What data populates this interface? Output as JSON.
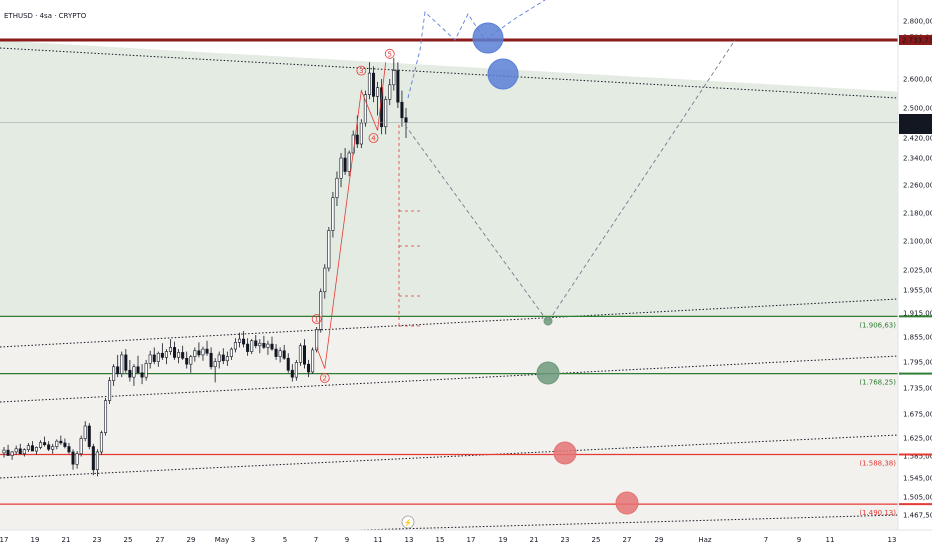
{
  "header": {
    "title": "ETHUSD · 4sa · CRYPTO"
  },
  "colors": {
    "up": "#ffffff",
    "down": "#131722",
    "wick": "#131722",
    "resistance": "#8b1a1a",
    "green_line": "#2e7d32",
    "red_line": "#e53935",
    "channel_fill": "#e3ebe3",
    "lower_fill": "#f2f1ee",
    "blue_circle": "#5b7fd6",
    "green_circle": "#6e9a7d",
    "red_circle": "#e57373"
  },
  "chart_data": {
    "type": "candlestick",
    "symbol": "ETHUSD",
    "timeframe": "4sa",
    "exchange": "CRYPTO",
    "ylim": [
      1440,
      2840
    ],
    "y_ticks": [
      "2.800,00",
      "2.700,00",
      "2.600,00",
      "2.500,00",
      "2.420,00",
      "2.340,00",
      "2.260,00",
      "2.180,00",
      "2.100,00",
      "2.025,00",
      "1.955,00",
      "1.915,00",
      "1.855,00",
      "1.795,00",
      "1.735,00",
      "1.675,00",
      "1.625,00",
      "1.585,00",
      "1.545,00",
      "1.505,00",
      "1.467,50"
    ],
    "x_ticks": [
      "17",
      "19",
      "21",
      "23",
      "25",
      "27",
      "29",
      "May",
      "3",
      "5",
      "7",
      "9",
      "11",
      "13",
      "15",
      "17",
      "19",
      "21",
      "23",
      "25",
      "27",
      "29",
      "Haz",
      "7",
      "9",
      "11",
      "13"
    ],
    "last_price": "2.461,02",
    "countdown": "02:49:27",
    "levels": [
      {
        "name": "resistance",
        "value": 2733.73,
        "label": "2.733,73"
      },
      {
        "name": "support-1",
        "value": 1906.63,
        "label": "(1.906,63)"
      },
      {
        "name": "support-2",
        "value": 1768.25,
        "label": "(1.768,25)"
      },
      {
        "name": "support-3",
        "value": 1588.38,
        "label": "(1.588,38)"
      },
      {
        "name": "support-4",
        "value": 1490.13,
        "label": "(1.490,13)"
      }
    ],
    "wave_labels": [
      "1",
      "2",
      "3",
      "4",
      "5"
    ],
    "candles": [
      [
        1592,
        1605,
        1582,
        1598
      ],
      [
        1598,
        1610,
        1590,
        1586
      ],
      [
        1586,
        1596,
        1578,
        1594
      ],
      [
        1594,
        1608,
        1588,
        1601
      ],
      [
        1601,
        1612,
        1592,
        1590
      ],
      [
        1590,
        1602,
        1584,
        1599
      ],
      [
        1599,
        1614,
        1594,
        1608
      ],
      [
        1608,
        1618,
        1598,
        1596
      ],
      [
        1596,
        1606,
        1588,
        1604
      ],
      [
        1604,
        1620,
        1600,
        1615
      ],
      [
        1615,
        1628,
        1606,
        1610
      ],
      [
        1610,
        1618,
        1596,
        1600
      ],
      [
        1600,
        1612,
        1590,
        1606
      ],
      [
        1606,
        1622,
        1600,
        1618
      ],
      [
        1618,
        1630,
        1610,
        1614
      ],
      [
        1614,
        1624,
        1602,
        1606
      ],
      [
        1606,
        1614,
        1590,
        1594
      ],
      [
        1594,
        1600,
        1560,
        1570
      ],
      [
        1570,
        1596,
        1562,
        1590
      ],
      [
        1590,
        1630,
        1584,
        1624
      ],
      [
        1624,
        1660,
        1618,
        1650
      ],
      [
        1650,
        1656,
        1600,
        1606
      ],
      [
        1606,
        1612,
        1550,
        1560
      ],
      [
        1560,
        1600,
        1548,
        1594
      ],
      [
        1594,
        1640,
        1588,
        1636
      ],
      [
        1636,
        1712,
        1630,
        1706
      ],
      [
        1706,
        1760,
        1698,
        1752
      ],
      [
        1752,
        1790,
        1740,
        1784
      ],
      [
        1784,
        1812,
        1760,
        1768
      ],
      [
        1768,
        1820,
        1760,
        1812
      ],
      [
        1812,
        1826,
        1770,
        1776
      ],
      [
        1776,
        1800,
        1750,
        1760
      ],
      [
        1760,
        1790,
        1740,
        1784
      ],
      [
        1784,
        1810,
        1770,
        1770
      ],
      [
        1770,
        1790,
        1744,
        1760
      ],
      [
        1760,
        1800,
        1752,
        1792
      ],
      [
        1792,
        1822,
        1780,
        1812
      ],
      [
        1812,
        1830,
        1790,
        1796
      ],
      [
        1796,
        1820,
        1784,
        1816
      ],
      [
        1816,
        1840,
        1800,
        1806
      ],
      [
        1806,
        1826,
        1790,
        1820
      ],
      [
        1820,
        1850,
        1812,
        1830
      ],
      [
        1830,
        1844,
        1800,
        1806
      ],
      [
        1806,
        1826,
        1792,
        1818
      ],
      [
        1818,
        1834,
        1800,
        1804
      ],
      [
        1804,
        1820,
        1780,
        1790
      ],
      [
        1790,
        1812,
        1770,
        1808
      ],
      [
        1808,
        1830,
        1796,
        1822
      ],
      [
        1822,
        1842,
        1806,
        1812
      ],
      [
        1812,
        1832,
        1798,
        1826
      ],
      [
        1826,
        1846,
        1810,
        1816
      ],
      [
        1816,
        1830,
        1778,
        1784
      ],
      [
        1784,
        1804,
        1748,
        1796
      ],
      [
        1796,
        1820,
        1780,
        1812
      ],
      [
        1812,
        1828,
        1790,
        1798
      ],
      [
        1798,
        1820,
        1786,
        1808
      ],
      [
        1808,
        1830,
        1800,
        1826
      ],
      [
        1826,
        1852,
        1818,
        1842
      ],
      [
        1842,
        1866,
        1830,
        1850
      ],
      [
        1850,
        1870,
        1830,
        1838
      ],
      [
        1838,
        1852,
        1810,
        1820
      ],
      [
        1820,
        1850,
        1814,
        1846
      ],
      [
        1846,
        1860,
        1828,
        1834
      ],
      [
        1834,
        1850,
        1816,
        1840
      ],
      [
        1840,
        1858,
        1826,
        1830
      ],
      [
        1830,
        1846,
        1812,
        1838
      ],
      [
        1838,
        1856,
        1822,
        1826
      ],
      [
        1826,
        1838,
        1800,
        1808
      ],
      [
        1808,
        1830,
        1794,
        1822
      ],
      [
        1822,
        1836,
        1800,
        1804
      ],
      [
        1804,
        1816,
        1770,
        1776
      ],
      [
        1776,
        1790,
        1750,
        1760
      ],
      [
        1760,
        1800,
        1752,
        1794
      ],
      [
        1794,
        1840,
        1786,
        1834
      ],
      [
        1834,
        1850,
        1780,
        1790
      ],
      [
        1790,
        1800,
        1760,
        1772
      ],
      [
        1772,
        1830,
        1768,
        1824
      ],
      [
        1824,
        1880,
        1818,
        1874
      ],
      [
        1874,
        1960,
        1866,
        1952
      ],
      [
        1952,
        2040,
        1940,
        2030
      ],
      [
        2030,
        2140,
        2020,
        2130
      ],
      [
        2130,
        2240,
        2110,
        2224
      ],
      [
        2224,
        2300,
        2200,
        2280
      ],
      [
        2280,
        2360,
        2254,
        2340
      ],
      [
        2340,
        2380,
        2290,
        2300
      ],
      [
        2300,
        2370,
        2286,
        2360
      ],
      [
        2360,
        2440,
        2350,
        2428
      ],
      [
        2428,
        2480,
        2380,
        2396
      ],
      [
        2396,
        2470,
        2380,
        2460
      ],
      [
        2460,
        2560,
        2450,
        2546
      ],
      [
        2546,
        2640,
        2530,
        2614
      ],
      [
        2614,
        2630,
        2520,
        2540
      ],
      [
        2540,
        2590,
        2480,
        2570
      ],
      [
        2570,
        2600,
        2430,
        2450
      ],
      [
        2450,
        2540,
        2430,
        2530
      ],
      [
        2530,
        2600,
        2510,
        2580
      ],
      [
        2580,
        2650,
        2560,
        2620
      ],
      [
        2620,
        2640,
        2500,
        2520
      ],
      [
        2520,
        2560,
        2450,
        2474
      ],
      [
        2474,
        2500,
        2420,
        2461
      ]
    ],
    "projection": [
      [
        2461,
        2640
      ],
      [
        2640,
        2810
      ],
      [
        2810,
        2760
      ],
      [
        2760,
        2840
      ]
    ]
  }
}
